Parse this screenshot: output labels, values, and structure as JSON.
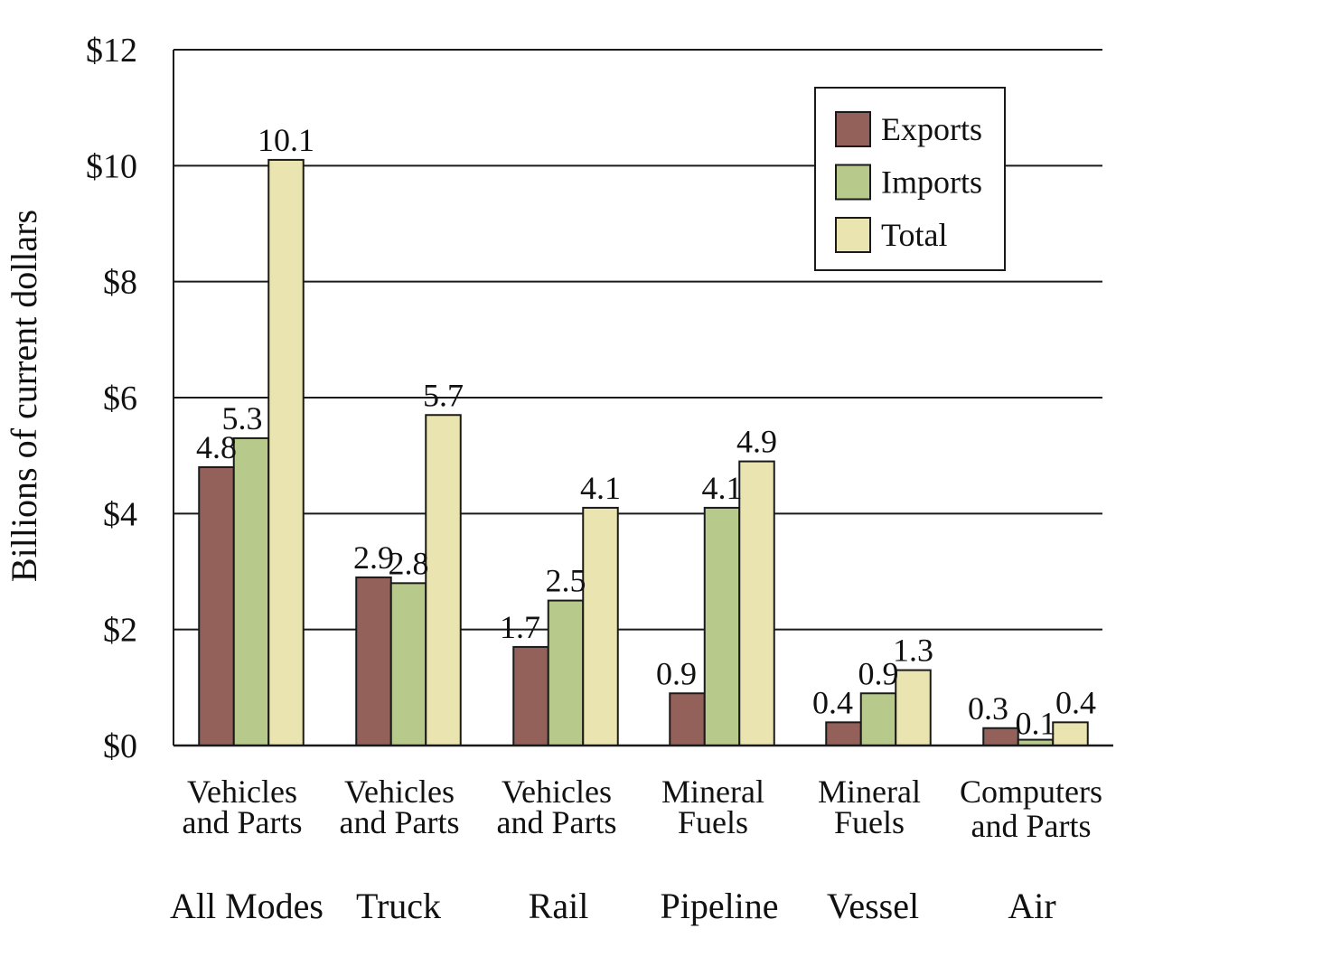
{
  "chart_data": {
    "type": "bar",
    "ylabel": "Billions of current dollars",
    "ylim": [
      0,
      12
    ],
    "yticks": [
      0,
      2,
      4,
      6,
      8,
      10,
      12
    ],
    "ytick_labels": [
      "$0",
      "$2",
      "$4",
      "$6",
      "$8",
      "$10",
      "$12"
    ],
    "grid": true,
    "legend_position": "top-right",
    "categories": [
      {
        "commodity": [
          "Vehicles",
          "and Parts"
        ],
        "mode": "All Modes"
      },
      {
        "commodity": [
          "Vehicles",
          "and Parts"
        ],
        "mode": "Truck"
      },
      {
        "commodity": [
          "Vehicles",
          "and Parts"
        ],
        "mode": "Rail"
      },
      {
        "commodity": [
          "Mineral",
          "Fuels"
        ],
        "mode": "Pipeline"
      },
      {
        "commodity": [
          "Mineral",
          "Fuels"
        ],
        "mode": "Vessel"
      },
      {
        "commodity": [
          "Computers",
          "and Parts"
        ],
        "mode": "Air"
      }
    ],
    "series": [
      {
        "name": "Exports",
        "color": "#94605a",
        "values": [
          4.8,
          2.9,
          1.7,
          0.9,
          0.4,
          0.3
        ],
        "labels": [
          "4.8",
          "2.9",
          "1.7",
          "0.9",
          "0.4",
          "0.3"
        ]
      },
      {
        "name": "Imports",
        "color": "#b8c98c",
        "values": [
          5.3,
          2.8,
          2.5,
          4.1,
          0.9,
          0.1
        ],
        "labels": [
          "5.3",
          "2.8",
          "2.5",
          "4.1",
          "0.9",
          "0.1"
        ]
      },
      {
        "name": "Total",
        "color": "#e9e4b0",
        "values": [
          10.1,
          5.7,
          4.1,
          4.9,
          1.3,
          0.4
        ],
        "labels": [
          "10.1",
          "5.7",
          "4.1",
          "4.9",
          "1.3",
          "0.4"
        ]
      }
    ]
  }
}
